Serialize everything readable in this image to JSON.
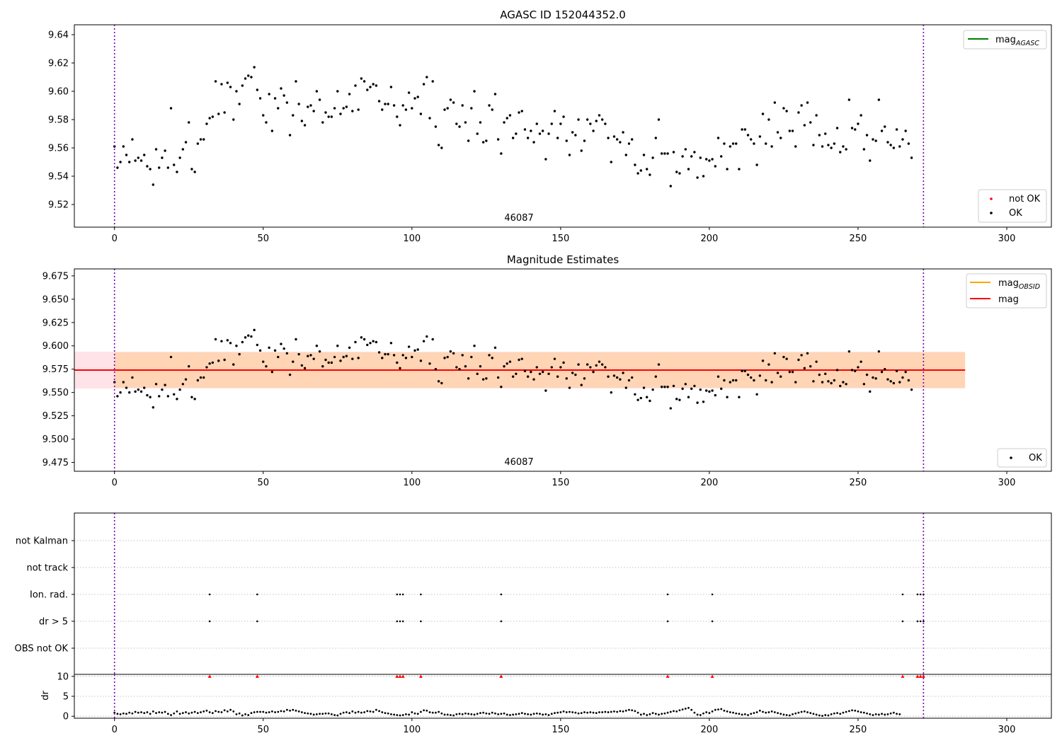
{
  "chart_data": [
    {
      "type": "scatter",
      "title": "AGASC ID 152044352.0",
      "xlim": [
        -13.5,
        315
      ],
      "ylim": [
        9.504,
        9.647
      ],
      "x_ticks": [
        0,
        50,
        100,
        150,
        200,
        250,
        300
      ],
      "y_ticks": [
        "9.52",
        "9.54",
        "9.56",
        "9.58",
        "9.60",
        "9.62",
        "9.64"
      ],
      "annotation": "46087",
      "obsid_boundaries": [
        0,
        272
      ],
      "legend_top": {
        "position": "top-right",
        "entries": [
          {
            "label": "mag",
            "sub": "AGASC",
            "color": "#008000"
          }
        ]
      },
      "legend_bottom": {
        "position": "bottom-right",
        "entries": [
          {
            "label": "not OK",
            "color": "#ff0000"
          },
          {
            "label": "OK",
            "color": "#000000"
          }
        ]
      },
      "series": [
        {
          "name": "OK",
          "color": "#000000",
          "y": [
            9.561,
            9.546,
            9.55,
            9.561,
            9.555,
            9.55,
            9.566,
            9.551,
            9.553,
            9.551,
            9.555,
            9.547,
            9.545,
            9.534,
            9.559,
            9.546,
            9.553,
            9.558,
            9.546,
            9.588,
            9.548,
            9.543,
            9.553,
            9.559,
            9.564,
            9.578,
            9.545,
            9.543,
            9.563,
            9.566,
            9.566,
            9.577,
            9.581,
            9.582,
            9.607,
            9.584,
            9.605,
            9.585,
            9.606,
            9.603,
            9.58,
            9.6,
            9.591,
            9.604,
            9.609,
            9.611,
            9.61,
            9.617,
            9.601,
            9.595,
            9.583,
            9.578,
            9.598,
            9.572,
            9.595,
            9.588,
            9.602,
            9.597,
            9.592,
            9.569,
            9.583,
            9.607,
            9.591,
            9.579,
            9.576,
            9.589,
            9.59,
            9.586,
            9.6,
            9.594,
            9.578,
            9.585,
            9.582,
            9.582,
            9.588,
            9.6,
            9.584,
            9.588,
            9.589,
            9.598,
            9.586,
            9.604,
            9.587,
            9.609,
            9.607,
            9.601,
            9.603,
            9.605,
            9.604,
            9.593,
            9.587,
            9.591,
            9.591,
            9.603,
            9.59,
            9.582,
            9.576,
            9.59,
            9.587,
            9.599,
            9.588,
            9.595,
            9.596,
            9.584,
            9.605,
            9.61,
            9.581,
            9.607,
            9.575,
            9.562,
            9.56,
            9.587,
            9.588,
            9.594,
            9.592,
            9.577,
            9.575,
            9.59,
            9.578,
            9.565,
            9.588,
            9.6,
            9.57,
            9.578,
            9.564,
            9.565,
            9.59,
            9.587,
            9.598,
            9.566,
            9.556,
            9.578,
            9.581,
            9.583,
            9.567,
            9.57,
            9.585,
            9.586,
            9.573,
            9.567,
            9.572,
            9.564,
            9.577,
            9.57,
            9.572,
            9.552,
            9.57,
            9.577,
            9.586,
            9.567,
            9.577,
            9.582,
            9.565,
            9.555,
            9.571,
            9.569,
            9.58,
            9.558,
            9.565,
            9.58,
            9.577,
            9.572,
            9.579,
            9.583,
            9.58,
            9.577,
            9.567,
            9.55,
            9.568,
            9.566,
            9.564,
            9.571,
            9.555,
            9.563,
            9.566,
            9.548,
            9.542,
            9.544,
            9.555,
            9.545,
            9.541,
            9.553,
            9.567,
            9.58,
            9.556,
            9.556,
            9.556,
            9.533,
            9.557,
            9.543,
            9.542,
            9.554,
            9.559,
            9.545,
            9.554,
            9.557,
            9.539,
            9.553,
            9.54,
            9.552,
            9.551,
            9.552,
            9.547,
            9.567,
            9.554,
            9.563,
            9.545,
            9.561,
            9.563,
            9.563,
            9.545,
            9.573,
            9.573,
            9.569,
            9.566,
            9.563,
            9.548,
            9.568,
            9.584,
            9.563,
            9.58,
            9.561,
            9.592,
            9.571,
            9.567,
            9.588,
            9.586,
            9.572,
            9.572,
            9.561,
            9.585,
            9.59,
            9.576,
            9.592,
            9.578,
            9.562,
            9.583,
            9.569,
            9.561,
            9.57,
            9.562,
            9.56,
            9.563,
            9.574,
            9.557,
            9.561,
            9.559,
            9.594,
            9.574,
            9.573,
            9.577,
            9.583,
            9.559,
            9.569,
            9.551,
            9.566,
            9.565,
            9.594,
            9.572,
            9.575,
            9.564,
            9.562,
            9.56,
            9.573,
            9.561,
            9.566,
            9.572,
            9.563,
            9.553
          ]
        }
      ]
    },
    {
      "type": "scatter",
      "title": "Magnitude Estimates",
      "xlim": [
        -13.5,
        315
      ],
      "ylim": [
        9.4655,
        9.6825
      ],
      "x_ticks": [
        0,
        50,
        100,
        150,
        200,
        250,
        300
      ],
      "y_ticks": [
        "9.475",
        "9.500",
        "9.525",
        "9.550",
        "9.575",
        "9.600",
        "9.625",
        "9.650",
        "9.675"
      ],
      "annotation": "46087",
      "obsid_boundaries": [
        0,
        272
      ],
      "mag_obsid": {
        "value": 9.574,
        "x_range": [
          -13.5,
          286
        ],
        "band": [
          9.555,
          9.593
        ],
        "color": "#ffa500"
      },
      "mag": {
        "value": 9.574,
        "x_range": [
          -13.5,
          286
        ],
        "band": [
          9.555,
          9.593
        ],
        "color": "#ff0000"
      },
      "legend_top": {
        "position": "top-right",
        "entries": [
          {
            "label": "mag",
            "sub": "OBSID",
            "color": "#ffa500"
          },
          {
            "label": "mag",
            "color": "#ff0000"
          }
        ]
      },
      "legend_bottom": {
        "position": "bottom-right",
        "entries": [
          {
            "label": "OK",
            "color": "#000000"
          }
        ]
      }
    },
    {
      "type": "scatter",
      "title": "",
      "xlim": [
        -13.5,
        315
      ],
      "categories": [
        "OBS not OK",
        "dr > 5",
        "Ion. rad.",
        "not track",
        "not Kalman"
      ],
      "obsid_boundaries": [
        0,
        272
      ],
      "flags": {
        "dr > 5": [
          32,
          48,
          95,
          96,
          97,
          103,
          130,
          186,
          201,
          265,
          270,
          271,
          272
        ],
        "Ion. rad.": [
          32,
          48,
          95,
          96,
          97,
          103,
          130,
          186,
          201,
          265,
          270,
          271,
          272
        ]
      }
    },
    {
      "type": "scatter",
      "title": "",
      "ylabel": "dr",
      "xlim": [
        -13.5,
        315
      ],
      "ylim": [
        -0.5,
        10.5
      ],
      "y_ticks": [
        "0",
        "5",
        "10"
      ],
      "x_ticks": [
        0,
        50,
        100,
        150,
        200,
        250,
        300
      ],
      "obsid_boundaries": [
        0,
        272
      ],
      "clipped_value": 10,
      "clipped_x": [
        32,
        48,
        95,
        96,
        97,
        103,
        130,
        186,
        201,
        265,
        270,
        271,
        272
      ],
      "series": [
        {
          "name": "dr",
          "color": "#000000",
          "y": [
            0.9,
            0.6,
            0.5,
            0.7,
            0.6,
            0.9,
            0.7,
            1.1,
            0.9,
            1.0,
            0.8,
            1.0,
            0.6,
            1.2,
            0.8,
            1.0,
            0.9,
            1.1,
            0.6,
            0.3,
            0.7,
            1.2,
            0.6,
            0.8,
            1.0,
            0.7,
            0.9,
            1.1,
            0.8,
            1.0,
            1.2,
            1.4,
            1.0,
            0.8,
            1.3,
            1.1,
            1.0,
            1.5,
            1.2,
            1.6,
            1.2,
            0.5,
            0.7,
            0.2,
            0.5,
            0.3,
            0.8,
            1.0,
            1.1,
            1.1,
            1.1,
            0.9,
            1.0,
            1.2,
            1.0,
            1.1,
            1.3,
            1.2,
            1.6,
            1.4,
            1.6,
            1.4,
            1.2,
            1.0,
            0.8,
            0.7,
            0.6,
            0.4,
            0.5,
            0.6,
            0.6,
            0.7,
            0.7,
            0.5,
            0.3,
            0.2,
            0.6,
            0.9,
            1.0,
            0.8,
            1.2,
            0.9,
            1.1,
            0.9,
            1.0,
            1.3,
            1.2,
            1.1,
            1.6,
            1.3,
            1.0,
            0.8,
            0.7,
            0.5,
            0.4,
            0.3,
            0.2,
            0.3,
            0.5,
            0.4,
            1.0,
            0.7,
            0.6,
            1.1,
            1.5,
            1.4,
            1.0,
            0.9,
            0.9,
            1.1,
            0.7,
            0.4,
            0.4,
            0.3,
            0.2,
            0.5,
            0.6,
            0.5,
            0.7,
            0.6,
            0.5,
            0.4,
            0.6,
            0.8,
            0.9,
            0.7,
            0.6,
            0.9,
            0.7,
            0.5,
            0.6,
            0.7,
            0.4,
            0.3,
            0.4,
            0.5,
            0.6,
            0.8,
            0.6,
            0.5,
            0.4,
            0.6,
            0.7,
            0.6,
            0.4,
            0.5,
            0.3,
            0.6,
            0.8,
            0.9,
            1.0,
            1.2,
            1.0,
            1.1,
            1.0,
            0.9,
            0.7,
            0.8,
            1.0,
            0.9,
            1.0,
            0.9,
            0.8,
            1.0,
            1.0,
            1.1,
            1.0,
            1.1,
            1.2,
            1.1,
            1.3,
            1.2,
            1.4,
            1.6,
            1.5,
            1.3,
            0.9,
            0.4,
            0.6,
            0.3,
            0.5,
            0.8,
            0.6,
            0.4,
            0.6,
            0.7,
            0.9,
            1.1,
            1.3,
            1.2,
            1.5,
            1.7,
            1.9,
            2.1,
            1.6,
            0.9,
            0.4,
            0.3,
            0.7,
            1.0,
            0.8,
            1.2,
            1.6,
            1.7,
            1.8,
            1.4,
            1.2,
            1.0,
            0.9,
            0.7,
            0.6,
            0.4,
            0.5,
            0.3,
            0.6,
            0.8,
            1.0,
            1.4,
            1.1,
            0.9,
            1.0,
            1.2,
            1.0,
            0.8,
            0.6,
            0.4,
            0.3,
            0.2,
            0.5,
            0.7,
            0.9,
            1.1,
            1.2,
            1.0,
            0.8,
            0.6,
            0.4,
            0.2,
            0.1,
            0.3,
            0.2,
            0.5,
            0.7,
            0.8,
            0.6,
            0.9,
            1.1,
            1.3,
            1.5,
            1.4,
            1.2,
            1.0,
            0.9,
            0.7,
            0.5,
            0.3,
            0.5,
            0.4,
            0.6,
            0.4,
            0.5,
            0.7,
            0.9,
            0.6,
            0.5
          ]
        }
      ]
    }
  ]
}
